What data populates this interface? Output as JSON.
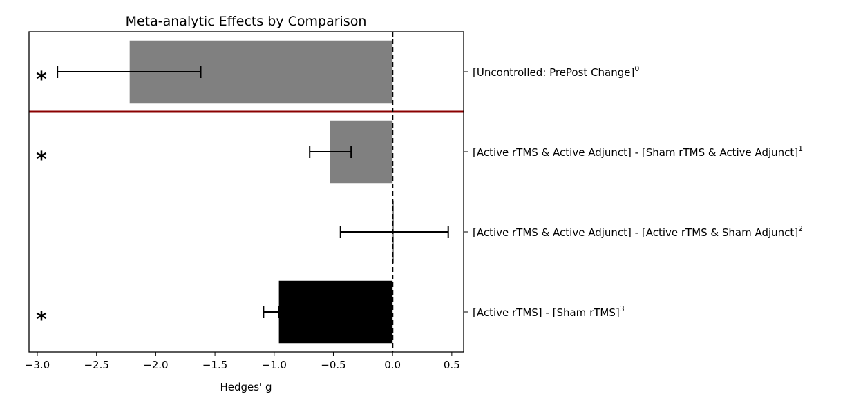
{
  "chart_data": {
    "type": "bar",
    "orientation": "horizontal",
    "title": "Meta-analytic Effects by Comparison",
    "xlabel": "Hedges' g",
    "ylabel": "",
    "xlim": [
      -3.07,
      0.6
    ],
    "xticks": [
      -3.0,
      -2.5,
      -2.0,
      -1.5,
      -1.0,
      -0.5,
      0.0,
      0.5
    ],
    "xtick_labels": [
      "−3.0",
      "−2.5",
      "−2.0",
      "−1.5",
      "−1.0",
      "−0.5",
      "0.0",
      "0.5"
    ],
    "reference_line": 0.0,
    "separator_after_index": 0,
    "separator_color": "#8b0000",
    "grid": false,
    "legend": false,
    "significance_marker": "*",
    "categories": [
      {
        "label": "[Uncontrolled: PrePost Change]",
        "sup": "0",
        "value": -2.22,
        "ci": [
          -2.83,
          -1.62
        ],
        "color": "#808080",
        "significant": true
      },
      {
        "label": "[Active rTMS & Active Adjunct] - [Sham rTMS & Active Adjunct]",
        "sup": "1",
        "value": -0.53,
        "ci": [
          -0.7,
          -0.35
        ],
        "color": "#808080",
        "significant": true
      },
      {
        "label": "[Active rTMS & Active Adjunct] - [Active rTMS & Sham Adjunct]",
        "sup": "2",
        "value": 0.01,
        "ci": [
          -0.44,
          0.47
        ],
        "color": "#808080",
        "significant": false
      },
      {
        "label": "[Active rTMS] - [Sham rTMS]",
        "sup": "3",
        "value": -0.96,
        "ci": [
          -1.09,
          -0.96
        ],
        "color": "#000000",
        "significant": true
      }
    ]
  }
}
